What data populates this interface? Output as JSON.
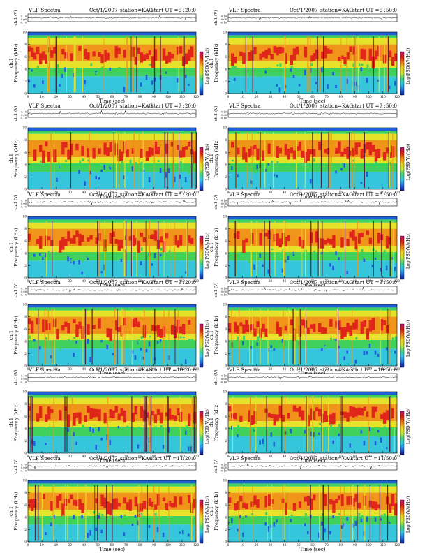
{
  "chart_data": {
    "type": "heatmap",
    "panels": [
      {
        "title_left": "VLF Spectra",
        "date": "Oct/1/2007",
        "station": "station=KAG",
        "start": "start  UT  =6 :20:0"
      },
      {
        "title_left": "VLF Spectra",
        "date": "Oct/1/2007",
        "station": "station=KAG",
        "start": "start  UT  =6 :50:0"
      },
      {
        "title_left": "VLF Spectra",
        "date": "Oct/1/2007",
        "station": "station=KAG",
        "start": "start  UT  =7 :20:0"
      },
      {
        "title_left": "VLF Spectra",
        "date": "Oct/1/2007",
        "station": "station=KAG",
        "start": "start  UT  =7 :50:0"
      },
      {
        "title_left": "VLF Spectra",
        "date": "Oct/1/2007",
        "station": "station=KAG",
        "start": "start  UT  =8 :20:0"
      },
      {
        "title_left": "VLF Spectra",
        "date": "Oct/1/2007",
        "station": "station=KAG",
        "start": "start  UT  =8 :50:0"
      },
      {
        "title_left": "VLF Spectra",
        "date": "Oct/1/2007",
        "station": "station=KAG",
        "start": "start  UT  =9 :20:0"
      },
      {
        "title_left": "VLF Spectra",
        "date": "Oct/1/2007",
        "station": "station=KAG",
        "start": "start  UT  =9 :50:0"
      },
      {
        "title_left": "VLF Spectra",
        "date": "Oct/1/2007",
        "station": "station=KAG",
        "start": "start  UT  =10:20:0"
      },
      {
        "title_left": "VLF Spectra",
        "date": "Oct/1/2007",
        "station": "station=KAG",
        "start": "start  UT  =10:50:0"
      },
      {
        "title_left": "VLF Spectra",
        "date": "Oct/1/2007",
        "station": "station=KAG",
        "start": "start  UT  =11:20:0"
      },
      {
        "title_left": "VLF Spectra",
        "date": "Oct/1/2007",
        "station": "station=KAG",
        "start": "start  UT  =11:50:0"
      }
    ],
    "xlabel": "Time  (sec)",
    "xlim": [
      0,
      120
    ],
    "xticks": [
      0,
      10,
      20,
      30,
      40,
      50,
      60,
      70,
      80,
      90,
      100,
      110,
      120
    ],
    "ylabel_line1": "ch.1",
    "ylabel_line2": "Frequency  (kHz)",
    "ylim": [
      0,
      10
    ],
    "yticks": [
      0,
      2,
      4,
      6,
      8,
      10
    ],
    "waveform_label": "ch.1 (V)",
    "waveform_ticks": [
      "0.10",
      "0.00",
      "-0.10"
    ],
    "colorbar_label": "Log(PSD(V/√Hz))",
    "colorbar_colors": [
      "#0a1a8c",
      "#1f6fe0",
      "#2ec7e8",
      "#3fd27a",
      "#c8e630",
      "#f2d21a",
      "#f07a10",
      "#d81e10",
      "#b0147a"
    ],
    "spectrum_colors": {
      "blue": "#1f5fd8",
      "cyan": "#36c6dc",
      "green": "#40d05c",
      "yellow": "#e6e22a",
      "orange": "#f0941a",
      "red": "#e0261a",
      "dark": "#4a1030"
    }
  }
}
